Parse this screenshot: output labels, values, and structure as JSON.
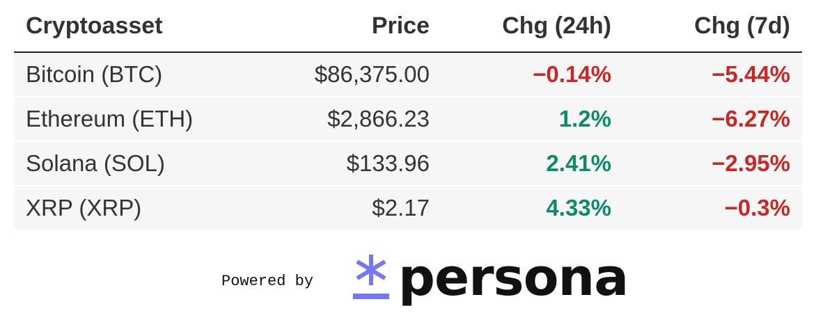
{
  "table": {
    "header": [
      "Cryptoasset",
      "Price",
      "Chg (24h)",
      "Chg (7d)"
    ],
    "rows": [
      [
        "Bitcoin (BTC)",
        "$86,375.00",
        "−0.14%",
        "−5.44%"
      ],
      [
        "Ethereum (ETH)",
        "$2,866.23",
        "1.2%",
        "−6.27%"
      ],
      [
        "Solana (SOL)",
        "$133.96",
        "2.41%",
        "−2.95%"
      ],
      [
        "XRP (XRP)",
        "$2.17",
        "4.33%",
        "−0.3%"
      ]
    ]
  },
  "footer": {
    "powered_by": "Powered by",
    "brand": "persona"
  }
}
